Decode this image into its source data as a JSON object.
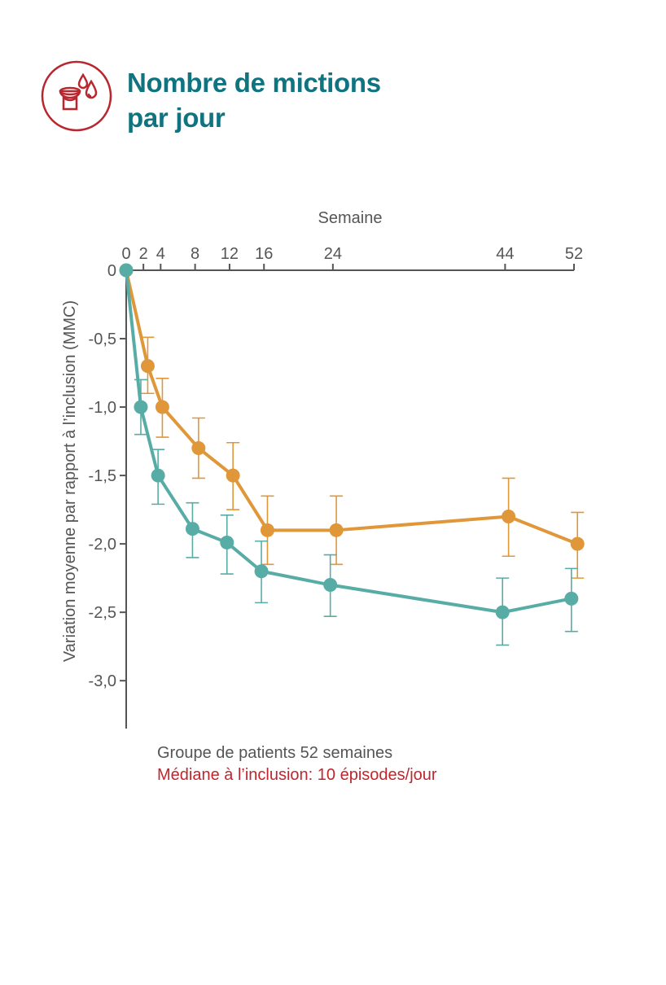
{
  "header": {
    "title_line1": "Nombre de mictions",
    "title_line2": "par jour",
    "icon": "toilet-droplets-icon",
    "title_color": "#0f7480",
    "icon_color": "#b8262f"
  },
  "chart_data": {
    "type": "line",
    "xlabel": "Semaine",
    "ylabel": "Variation moyenne par rapport à l’inclusion (MMC)",
    "x_ticks": [
      0,
      2,
      4,
      8,
      12,
      16,
      24,
      44,
      52
    ],
    "x_tick_labels": [
      "0",
      "2",
      "4",
      "8",
      "12",
      "16",
      "24",
      "44",
      "52"
    ],
    "y_ticks": [
      0,
      -0.5,
      -1.0,
      -1.5,
      -2.0,
      -2.5,
      -3.0
    ],
    "y_tick_labels": [
      "0",
      "-0,5",
      "-1,0",
      "-1,5",
      "-2,0",
      "-2,5",
      "-3,0"
    ],
    "xlim": [
      0,
      52
    ],
    "ylim": [
      -3.35,
      0
    ],
    "x_axis_position": "top",
    "grid": false,
    "series": [
      {
        "color": "#e0973a",
        "points": [
          {
            "x": 0,
            "y": 0
          },
          {
            "x": 2.5,
            "y": -0.7,
            "err_low": -0.9,
            "err_high": -0.49
          },
          {
            "x": 4.2,
            "y": -1.0,
            "err_low": -1.22,
            "err_high": -0.79
          },
          {
            "x": 8.4,
            "y": -1.3,
            "err_low": -1.52,
            "err_high": -1.08
          },
          {
            "x": 12.4,
            "y": -1.5,
            "err_low": -1.75,
            "err_high": -1.26
          },
          {
            "x": 16.4,
            "y": -1.9,
            "err_low": -2.15,
            "err_high": -1.65
          },
          {
            "x": 24.4,
            "y": -1.9,
            "err_low": -2.15,
            "err_high": -1.65
          },
          {
            "x": 44.4,
            "y": -1.8,
            "err_low": -2.09,
            "err_high": -1.52
          },
          {
            "x": 52.4,
            "y": -2.0,
            "err_low": -2.25,
            "err_high": -1.77
          }
        ]
      },
      {
        "color": "#58aca6",
        "points": [
          {
            "x": 0,
            "y": 0
          },
          {
            "x": 1.7,
            "y": -1.0,
            "err_low": -1.2,
            "err_high": -0.8
          },
          {
            "x": 3.7,
            "y": -1.5,
            "err_low": -1.71,
            "err_high": -1.31
          },
          {
            "x": 7.7,
            "y": -1.89,
            "err_low": -2.1,
            "err_high": -1.7
          },
          {
            "x": 11.7,
            "y": -1.99,
            "err_low": -2.22,
            "err_high": -1.79
          },
          {
            "x": 15.7,
            "y": -2.2,
            "err_low": -2.43,
            "err_high": -1.98
          },
          {
            "x": 23.7,
            "y": -2.3,
            "err_low": -2.53,
            "err_high": -2.08
          },
          {
            "x": 43.7,
            "y": -2.5,
            "err_low": -2.74,
            "err_high": -2.25
          },
          {
            "x": 51.7,
            "y": -2.4,
            "err_low": -2.64,
            "err_high": -2.18
          }
        ]
      }
    ]
  },
  "footnote": {
    "group": "Groupe de patients 52 semaines",
    "baseline": "Médiane à l’inclusion: 10 épisodes/jour",
    "group_color": "#555555",
    "baseline_color": "#c0262d"
  }
}
